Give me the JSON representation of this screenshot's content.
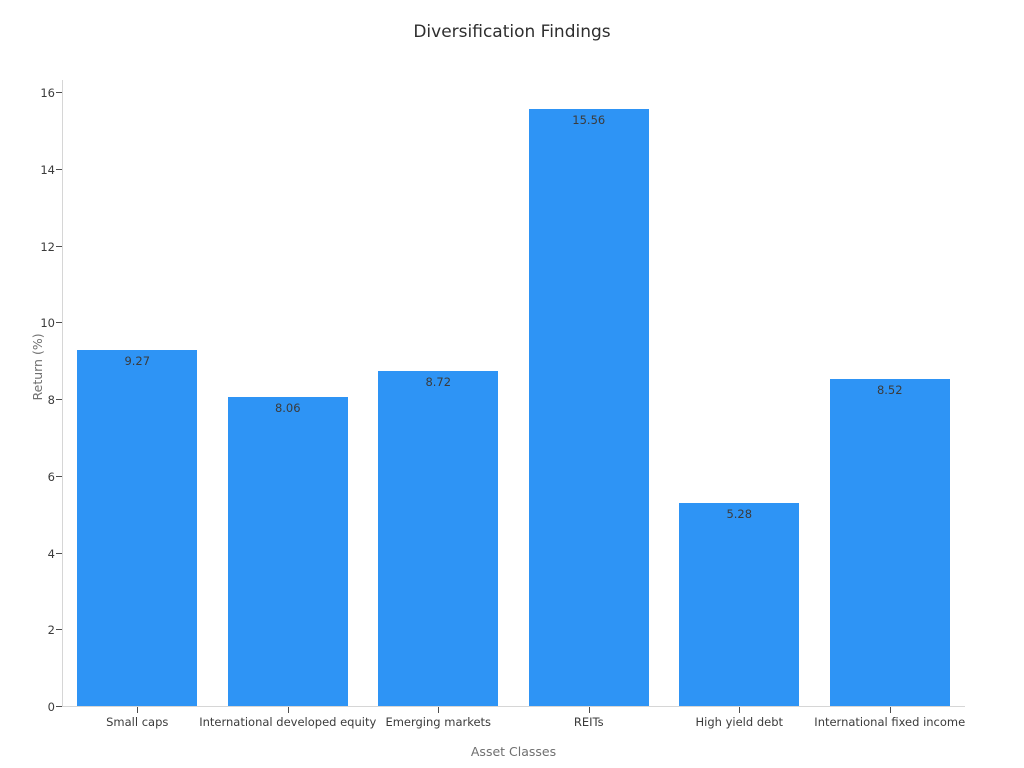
{
  "chart_data": {
    "type": "bar",
    "title": "Diversification Findings",
    "xlabel": "Asset Classes",
    "ylabel": "Return (%)",
    "categories": [
      "Small caps",
      "International developed equity",
      "Emerging markets",
      "REITs",
      "High yield debt",
      "International fixed income"
    ],
    "values": [
      9.27,
      8.06,
      8.72,
      15.56,
      5.28,
      8.52
    ],
    "value_labels": [
      "9.27",
      "8.06",
      "8.72",
      "15.56",
      "5.28",
      "8.52"
    ],
    "yticks": [
      0,
      2,
      4,
      6,
      8,
      10,
      12,
      14,
      16
    ],
    "ylim": [
      0,
      16.34
    ],
    "bar_color": "#2E94F5",
    "value_label_color": "#3b3b3b",
    "tick_label_color": "#3b3b3b",
    "axis_label_color": "#6f6f6f",
    "spine_color": "#d6d6d6",
    "background_color": "#ffffff",
    "grid": "off",
    "legend": "none"
  }
}
